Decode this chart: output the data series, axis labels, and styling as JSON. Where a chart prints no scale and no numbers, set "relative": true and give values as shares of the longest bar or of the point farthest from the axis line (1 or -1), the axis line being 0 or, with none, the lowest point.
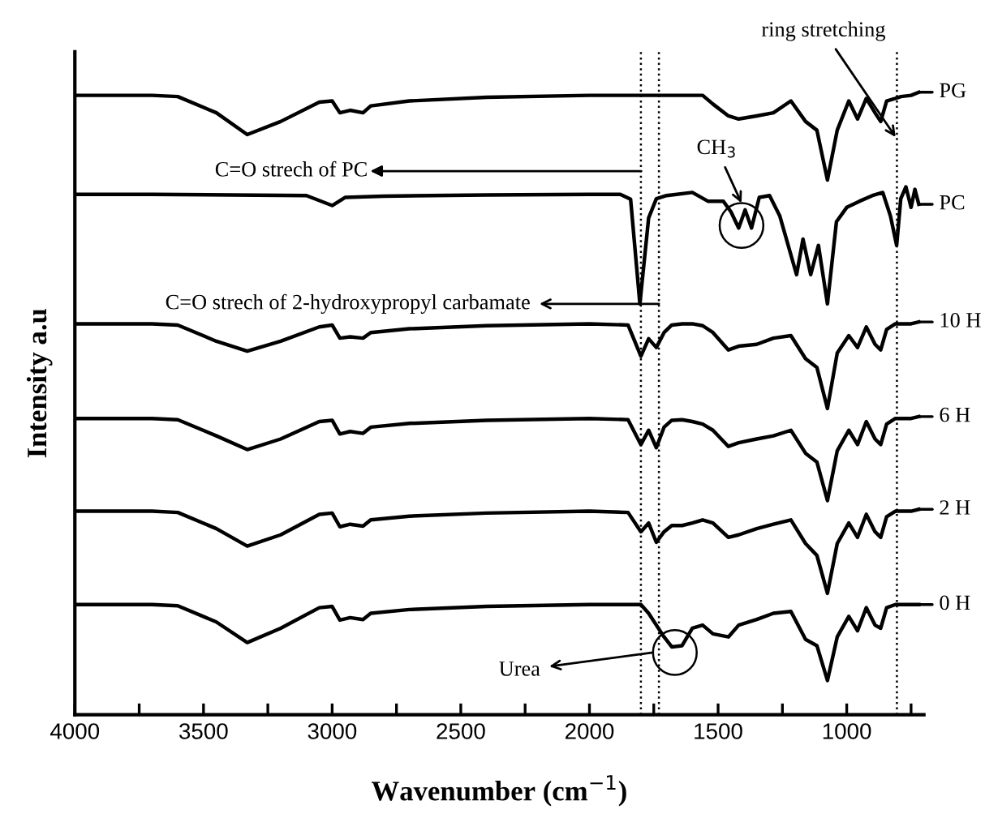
{
  "chart_data": {
    "type": "line",
    "relative": true,
    "xlabel": "Wavenumber (cm$^{−1}$)",
    "ylabel": "Intensity a.u",
    "xlim": [
      4000,
      700
    ],
    "xticks": [
      4000,
      {
        "value": 3750,
        "label": null
      },
      3500,
      {
        "value": 3250,
        "label": null
      },
      3000,
      {
        "value": 2750,
        "label": null
      },
      2500,
      {
        "value": 2250,
        "label": null
      },
      2000,
      {
        "value": 1750,
        "label": null
      },
      1500,
      {
        "value": 1250,
        "label": null
      },
      1000,
      {
        "value": 750,
        "label": null
      }
    ],
    "tick_labels": "x",
    "grid": false,
    "legend": "right",
    "marker": "none",
    "line_style": "solid",
    "x": [
      3990,
      3700,
      3600,
      3450,
      3330,
      3200,
      3050,
      3000,
      2970,
      2930,
      2880,
      2850,
      2700,
      2400,
      2000,
      1850,
      1800,
      1770,
      1740,
      1710,
      1680,
      1640,
      1600,
      1560,
      1520,
      1460,
      1420,
      1350,
      1285,
      1217,
      1160,
      1116,
      1075,
      1037,
      992,
      958,
      924,
      890,
      868,
      845,
      811,
      789,
      750,
      720
    ],
    "series": [
      {
        "name": "PG",
        "color": "#000000",
        "values": [
          0.995,
          0.995,
          0.993,
          0.967,
          0.932,
          0.953,
          0.984,
          0.986,
          0.967,
          0.971,
          0.967,
          0.978,
          0.986,
          0.992,
          0.995,
          0.995,
          0.995,
          0.995,
          0.995,
          0.995,
          0.995,
          0.995,
          0.995,
          0.995,
          0.981,
          0.962,
          0.957,
          0.962,
          0.967,
          0.986,
          0.953,
          0.939,
          0.859,
          0.939,
          0.986,
          0.957,
          0.99,
          0.967,
          0.953,
          0.986,
          0.99,
          0.993,
          0.995,
          1.0
        ]
      },
      {
        "name": "PC",
        "color": "#000000",
        "x": [
          3990,
          3700,
          3100,
          3000,
          2950,
          2800,
          2400,
          2000,
          1880,
          1840,
          1804,
          1770,
          1740,
          1700,
          1600,
          1540,
          1480,
          1450,
          1420,
          1395,
          1370,
          1340,
          1300,
          1260,
          1195,
          1170,
          1140,
          1110,
          1075,
          1040,
          1000,
          950,
          900,
          860,
          830,
          806,
          790,
          770,
          750,
          735,
          720
        ],
        "values": [
          0.836,
          0.836,
          0.834,
          0.818,
          0.831,
          0.833,
          0.835,
          0.836,
          0.836,
          0.828,
          0.66,
          0.798,
          0.829,
          0.834,
          0.839,
          0.825,
          0.825,
          0.808,
          0.782,
          0.811,
          0.782,
          0.831,
          0.834,
          0.801,
          0.707,
          0.764,
          0.707,
          0.754,
          0.66,
          0.792,
          0.815,
          0.825,
          0.834,
          0.839,
          0.801,
          0.754,
          0.829,
          0.848,
          0.815,
          0.844,
          0.82
        ]
      },
      {
        "name": "10 H",
        "color": "#000000",
        "values": [
          0.628,
          0.628,
          0.626,
          0.6,
          0.584,
          0.6,
          0.623,
          0.626,
          0.605,
          0.607,
          0.605,
          0.614,
          0.62,
          0.625,
          0.628,
          0.626,
          0.576,
          0.604,
          0.59,
          0.614,
          0.626,
          0.628,
          0.628,
          0.625,
          0.614,
          0.586,
          0.592,
          0.595,
          0.605,
          0.609,
          0.572,
          0.558,
          0.492,
          0.581,
          0.609,
          0.59,
          0.623,
          0.595,
          0.586,
          0.619,
          0.628,
          0.628,
          0.628,
          0.631
        ]
      },
      {
        "name": "6 H",
        "color": "#000000",
        "values": [
          0.476,
          0.476,
          0.474,
          0.448,
          0.426,
          0.443,
          0.471,
          0.473,
          0.451,
          0.455,
          0.452,
          0.462,
          0.468,
          0.473,
          0.476,
          0.474,
          0.434,
          0.457,
          0.429,
          0.462,
          0.473,
          0.474,
          0.471,
          0.467,
          0.457,
          0.431,
          0.437,
          0.443,
          0.448,
          0.457,
          0.42,
          0.406,
          0.344,
          0.424,
          0.457,
          0.434,
          0.471,
          0.443,
          0.434,
          0.467,
          0.476,
          0.476,
          0.476,
          0.479
        ]
      },
      {
        "name": "2 H",
        "color": "#000000",
        "values": [
          0.327,
          0.327,
          0.325,
          0.299,
          0.271,
          0.289,
          0.322,
          0.324,
          0.302,
          0.306,
          0.303,
          0.313,
          0.319,
          0.324,
          0.327,
          0.325,
          0.294,
          0.308,
          0.277,
          0.294,
          0.304,
          0.304,
          0.308,
          0.313,
          0.308,
          0.285,
          0.289,
          0.299,
          0.306,
          0.313,
          0.275,
          0.256,
          0.195,
          0.275,
          0.308,
          0.285,
          0.322,
          0.294,
          0.285,
          0.318,
          0.327,
          0.327,
          0.327,
          0.33
        ]
      },
      {
        "name": "0 H",
        "color": "#000000",
        "values": [
          0.177,
          0.177,
          0.175,
          0.149,
          0.116,
          0.139,
          0.172,
          0.174,
          0.152,
          0.156,
          0.153,
          0.163,
          0.169,
          0.174,
          0.177,
          0.177,
          0.177,
          0.163,
          0.144,
          0.125,
          0.109,
          0.111,
          0.139,
          0.144,
          0.13,
          0.125,
          0.144,
          0.153,
          0.163,
          0.166,
          0.121,
          0.111,
          0.055,
          0.125,
          0.158,
          0.135,
          0.172,
          0.144,
          0.139,
          0.172,
          0.177,
          0.177,
          0.177,
          0.177
        ]
      }
    ],
    "ref_lines": [
      {
        "axis": "x",
        "value": 1800,
        "line_style": "dotted",
        "color": "#000000"
      },
      {
        "axis": "x",
        "value": 1730,
        "line_style": "dotted",
        "color": "#000000"
      },
      {
        "axis": "x",
        "value": 805,
        "line_style": "dotted",
        "color": "#000000"
      }
    ],
    "annotations": [
      {
        "text": "ring stretching",
        "x": 810,
        "y": 0.928
      },
      {
        "text": "CH$_{3}$",
        "x": 1409,
        "y": 0.822
      },
      "C=O strech of PC",
      {
        "text": "C=O strech of 2-hydroxypropyl carbamate",
        "x": 1730,
        "y": 0.66
      },
      {
        "text": "Urea",
        "x": 1753,
        "y": 0.1
      }
    ]
  }
}
